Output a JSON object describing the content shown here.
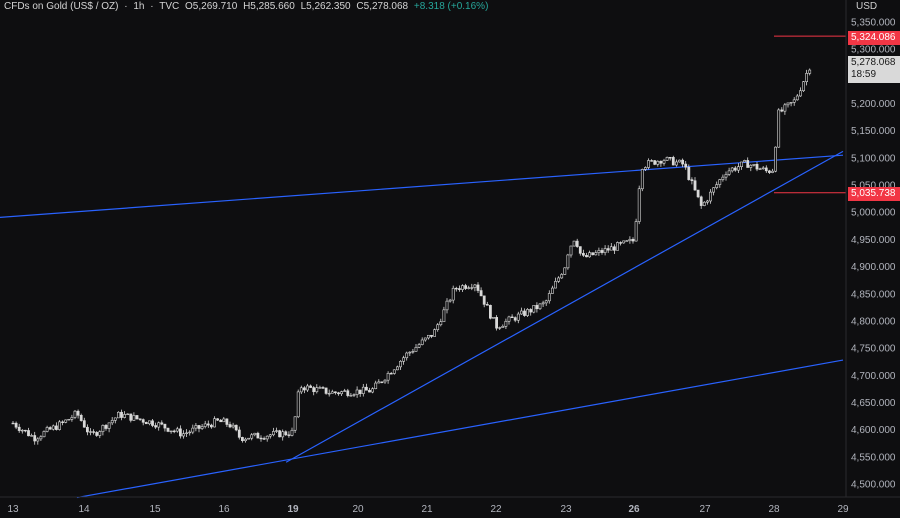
{
  "header": {
    "symbol": "CFDs on Gold (US$ / OZ)",
    "interval": "1h",
    "source": "TVC",
    "open": "O5,269.710",
    "high": "H5,285.660",
    "low": "L5,262.350",
    "close": "C5,278.068",
    "change": "+8.318 (+0.16%)"
  },
  "price_axis": {
    "currency": "USD",
    "tags": {
      "upper_level": "5,324.086",
      "lower_level": "5,035.738",
      "last_price": "5,278.068",
      "countdown": "18:59"
    }
  },
  "colors": {
    "background": "#0e0e10",
    "candle": "#d9d9d9",
    "trendline": "#2962ff",
    "level_line": "#f23645",
    "axis_text": "#b2b5be",
    "change_text": "#26a69a"
  },
  "chart_data": {
    "type": "candlestick",
    "title": "CFDs on Gold (US$ / OZ) · 1h · TVC",
    "y_tick_labels": [
      "5,350.000",
      "5,300.000",
      "5,200.000",
      "5,150.000",
      "5,100.000",
      "5,050.000",
      "5,000.000",
      "4,950.000",
      "4,900.000",
      "4,850.000",
      "4,800.000",
      "4,750.000",
      "4,700.000",
      "4,650.000",
      "4,600.000",
      "4,550.000",
      "4,500.000"
    ],
    "x_tick_labels": [
      "13",
      "14",
      "15",
      "16",
      "19",
      "20",
      "21",
      "22",
      "23",
      "26",
      "27",
      "28",
      "29"
    ],
    "ylim": [
      4480,
      5370
    ],
    "price_path": [
      {
        "x": 13.0,
        "y": 4612
      },
      {
        "x": 13.3,
        "y": 4585
      },
      {
        "x": 13.7,
        "y": 4612
      },
      {
        "x": 13.9,
        "y": 4630
      },
      {
        "x": 14.1,
        "y": 4588
      },
      {
        "x": 14.5,
        "y": 4628
      },
      {
        "x": 15.0,
        "y": 4612
      },
      {
        "x": 15.4,
        "y": 4592
      },
      {
        "x": 15.9,
        "y": 4615
      },
      {
        "x": 16.3,
        "y": 4608
      },
      {
        "x": 16.7,
        "y": 4585
      },
      {
        "x": 19.0,
        "y": 4595
      },
      {
        "x": 19.1,
        "y": 4680
      },
      {
        "x": 19.6,
        "y": 4668
      },
      {
        "x": 20.2,
        "y": 4672
      },
      {
        "x": 20.7,
        "y": 4738
      },
      {
        "x": 21.1,
        "y": 4778
      },
      {
        "x": 21.4,
        "y": 4860
      },
      {
        "x": 21.7,
        "y": 4870
      },
      {
        "x": 22.0,
        "y": 4790
      },
      {
        "x": 22.3,
        "y": 4808
      },
      {
        "x": 22.7,
        "y": 4832
      },
      {
        "x": 23.1,
        "y": 4930
      },
      {
        "x": 23.4,
        "y": 4955
      },
      {
        "x": 23.7,
        "y": 4915
      },
      {
        "x": 26.0,
        "y": 4948
      },
      {
        "x": 26.1,
        "y": 5085
      },
      {
        "x": 26.4,
        "y": 5098
      },
      {
        "x": 26.7,
        "y": 5088
      },
      {
        "x": 26.95,
        "y": 5010
      },
      {
        "x": 27.3,
        "y": 5075
      },
      {
        "x": 27.6,
        "y": 5090
      },
      {
        "x": 27.9,
        "y": 5075
      },
      {
        "x": 28.0,
        "y": 5080
      },
      {
        "x": 28.05,
        "y": 5180
      },
      {
        "x": 28.3,
        "y": 5205
      },
      {
        "x": 28.55,
        "y": 5278
      }
    ],
    "trendlines": [
      {
        "from": {
          "x": 12.0,
          "y": 4983
        },
        "to": {
          "x": 29.0,
          "y": 5105
        }
      },
      {
        "from": {
          "x": 18.7,
          "y": 4540
        },
        "to": {
          "x": 29.0,
          "y": 5112
        }
      },
      {
        "from": {
          "x": 13.9,
          "y": 4475
        },
        "to": {
          "x": 29.0,
          "y": 4728
        }
      }
    ],
    "horizontal_levels": [
      {
        "y": 5324.086,
        "from_x": 28.0
      },
      {
        "y": 5035.738,
        "from_x": 28.0
      }
    ],
    "last_price": 5278.068
  }
}
